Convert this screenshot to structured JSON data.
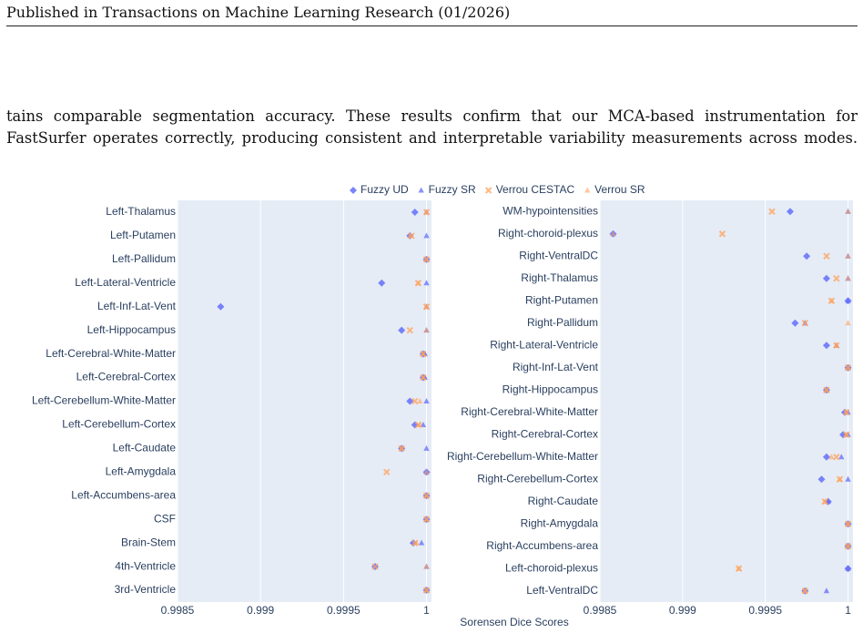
{
  "header": {
    "text": "Published in Transactions on Machine Learning Research (01/2026)"
  },
  "paragraph": {
    "lines": [
      "tains comparable segmentation accuracy. These results confirm that our MCA-based instrumentation for",
      "FastSurfer operates correctly, producing consistent and interpretable variability measurements across modes."
    ]
  },
  "figure": {
    "xlabel": "Sorensen Dice Scores",
    "legend_position": "top"
  },
  "chart_data": [
    {
      "type": "scatter",
      "orientation": "h",
      "grid": true,
      "categories": [
        "Left-Thalamus",
        "Left-Putamen",
        "Left-Pallidum",
        "Left-Lateral-Ventricle",
        "Left-Inf-Lat-Vent",
        "Left-Hippocampus",
        "Left-Cerebral-White-Matter",
        "Left-Cerebral-Cortex",
        "Left-Cerebellum-White-Matter",
        "Left-Cerebellum-Cortex",
        "Left-Caudate",
        "Left-Amygdala",
        "Left-Accumbens-area",
        "CSF",
        "Brain-Stem",
        "4th-Ventricle",
        "3rd-Ventricle"
      ],
      "xlim": [
        0.9985,
        1.00003
      ],
      "xticks": [
        0.9985,
        0.999,
        0.9995,
        1
      ],
      "series": [
        {
          "name": "Fuzzy UD",
          "color": "#636efa",
          "symbol": "diamond",
          "values": [
            0.99993,
            0.9999,
            1,
            0.99973,
            0.99876,
            0.99985,
            0.99998,
            0.99998,
            0.9999,
            0.99993,
            0.99985,
            1,
            1,
            1,
            0.99992,
            0.99969,
            1
          ]
        },
        {
          "name": "Fuzzy SR",
          "color": "#636efa",
          "symbol": "triangle",
          "values": [
            1,
            1,
            1,
            1,
            1,
            1,
            0.99999,
            0.99999,
            1,
            0.99998,
            1,
            1,
            1,
            1,
            0.99997,
            1,
            1
          ]
        },
        {
          "name": "Verrou CESTAC",
          "color": "#ffa15a",
          "symbol": "x",
          "values": [
            1,
            0.99991,
            1,
            0.99995,
            1,
            0.9999,
            0.99998,
            0.99998,
            0.99993,
            0.99995,
            0.99985,
            0.99976,
            1,
            1,
            0.99993,
            0.99969,
            1
          ]
        },
        {
          "name": "Verrou SR",
          "color": "#ffa15a",
          "symbol": "triangle",
          "values": [
            1,
            0.9999,
            1,
            0.99995,
            1,
            1,
            0.99998,
            0.99998,
            0.99996,
            0.99996,
            0.99985,
            1,
            1,
            1,
            0.99994,
            1,
            1
          ]
        }
      ]
    },
    {
      "type": "scatter",
      "orientation": "h",
      "grid": true,
      "categories": [
        "WM-hypointensities",
        "Right-choroid-plexus",
        "Right-VentralDC",
        "Right-Thalamus",
        "Right-Putamen",
        "Right-Pallidum",
        "Right-Lateral-Ventricle",
        "Right-Inf-Lat-Vent",
        "Right-Hippocampus",
        "Right-Cerebral-White-Matter",
        "Right-Cerebral-Cortex",
        "Right-Cerebellum-White-Matter",
        "Right-Cerebellum-Cortex",
        "Right-Caudate",
        "Right-Amygdala",
        "Right-Accumbens-area",
        "Left-choroid-plexus",
        "Left-VentralDC"
      ],
      "xlim": [
        0.9985,
        1.00003
      ],
      "xticks": [
        0.9985,
        0.999,
        0.9995,
        1
      ],
      "series": [
        {
          "color": "#636efa",
          "symbol": "diamond",
          "values": [
            0.99965,
            0.99858,
            0.99975,
            0.99987,
            1,
            0.99968,
            0.99987,
            1,
            0.99987,
            0.99998,
            0.99997,
            0.99987,
            0.99984,
            0.99988,
            1,
            1,
            1,
            0.99974
          ]
        },
        {
          "color": "#636efa",
          "symbol": "triangle",
          "values": [
            1,
            0.99858,
            1,
            1,
            1,
            0.99974,
            0.99993,
            1,
            0.99987,
            1,
            1,
            0.99996,
            1,
            0.99988,
            1,
            1,
            1,
            0.99987
          ]
        },
        {
          "color": "#ffa15a",
          "symbol": "x",
          "values": [
            0.99954,
            0.99924,
            0.99987,
            0.99993,
            0.9999,
            0.99974,
            0.99993,
            1,
            0.99987,
            0.99999,
            0.99999,
            0.99993,
            0.99995,
            0.99986,
            1,
            1,
            0.99934,
            0.99974
          ]
        },
        {
          "color": "#ffa15a",
          "symbol": "triangle",
          "values": [
            1,
            0.99858,
            1,
            1,
            0.9999,
            1,
            0.99993,
            1,
            0.99987,
            0.99999,
            0.99999,
            0.9999,
            0.99995,
            0.99986,
            1,
            1,
            0.99934,
            0.99974
          ]
        }
      ]
    }
  ]
}
